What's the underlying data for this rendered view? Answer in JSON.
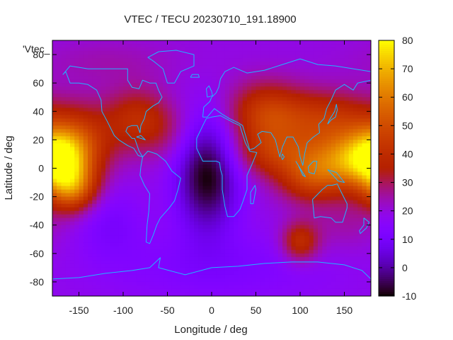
{
  "chart_data": {
    "type": "heatmap",
    "title": "VTEC / TECU 20230710_191.18900",
    "xlabel": "Longitude / deg",
    "ylabel": "Latitude / deg",
    "xlim": [
      -180,
      180
    ],
    "ylim": [
      -90,
      90
    ],
    "x_ticks": [
      -150,
      -100,
      -50,
      0,
      50,
      100,
      150
    ],
    "y_ticks": [
      -80,
      -60,
      -40,
      -20,
      0,
      20,
      40,
      60,
      80
    ],
    "series_label": "'Vtec_",
    "colorbar": {
      "min": -10,
      "max": 80,
      "ticks": [
        -10,
        0,
        10,
        20,
        30,
        40,
        50,
        60,
        70,
        80
      ]
    },
    "base_value": 19,
    "blobs": [
      {
        "lon": -172,
        "lat": 8,
        "dlon": 24,
        "dlat": 15,
        "amp": 45
      },
      {
        "lon": -158,
        "lat": -14,
        "dlon": 20,
        "dlat": 12,
        "amp": 34
      },
      {
        "lon": -145,
        "lat": 20,
        "dlon": 28,
        "dlat": 18,
        "amp": 18
      },
      {
        "lon": -85,
        "lat": 35,
        "dlon": 25,
        "dlat": 15,
        "amp": 18
      },
      {
        "lon": -50,
        "lat": 25,
        "dlon": 25,
        "dlat": 15,
        "amp": 8
      },
      {
        "lon": -5,
        "lat": -5,
        "dlon": 25,
        "dlat": 28,
        "amp": -29
      },
      {
        "lon": -115,
        "lat": -38,
        "dlon": 28,
        "dlat": 18,
        "amp": -8
      },
      {
        "lon": 10,
        "lat": -70,
        "dlon": 100,
        "dlat": 18,
        "amp": -7
      },
      {
        "lon": 60,
        "lat": 38,
        "dlon": 30,
        "dlat": 16,
        "amp": 24
      },
      {
        "lon": 75,
        "lat": 10,
        "dlon": 35,
        "dlat": 12,
        "amp": 20
      },
      {
        "lon": 130,
        "lat": 35,
        "dlon": 40,
        "dlat": 14,
        "amp": 22
      },
      {
        "lon": 150,
        "lat": 5,
        "dlon": 30,
        "dlat": 14,
        "amp": 33
      },
      {
        "lon": 110,
        "lat": -8,
        "dlon": 25,
        "dlat": 12,
        "amp": 20
      },
      {
        "lon": 100,
        "lat": -52,
        "dlon": 15,
        "dlat": 10,
        "amp": 22
      },
      {
        "lon": 150,
        "lat": -40,
        "dlon": 30,
        "dlat": 15,
        "amp": 6
      },
      {
        "lon": -120,
        "lat": 75,
        "dlon": 60,
        "dlat": 12,
        "amp": 5
      }
    ],
    "coastlines": [
      {
        "name": "north-america",
        "points": [
          [
            -165,
            68
          ],
          [
            -160,
            60
          ],
          [
            -150,
            60
          ],
          [
            -140,
            59
          ],
          [
            -130,
            55
          ],
          [
            -125,
            48
          ],
          [
            -124,
            40
          ],
          [
            -118,
            33
          ],
          [
            -110,
            23
          ],
          [
            -105,
            20
          ],
          [
            -95,
            16
          ],
          [
            -88,
            14
          ],
          [
            -83,
            9
          ],
          [
            -78,
            8
          ],
          [
            -82,
            12
          ],
          [
            -87,
            21
          ],
          [
            -90,
            21
          ],
          [
            -97,
            26
          ],
          [
            -95,
            29
          ],
          [
            -90,
            30
          ],
          [
            -84,
            30
          ],
          [
            -81,
            25
          ],
          [
            -80,
            30
          ],
          [
            -76,
            35
          ],
          [
            -74,
            40
          ],
          [
            -70,
            42
          ],
          [
            -66,
            44
          ],
          [
            -60,
            46
          ],
          [
            -56,
            50
          ],
          [
            -60,
            55
          ],
          [
            -63,
            60
          ],
          [
            -70,
            60
          ],
          [
            -78,
            62
          ],
          [
            -82,
            56
          ],
          [
            -90,
            57
          ],
          [
            -95,
            62
          ],
          [
            -95,
            70
          ],
          [
            -110,
            70
          ],
          [
            -130,
            70
          ],
          [
            -140,
            70
          ],
          [
            -160,
            72
          ],
          [
            -168,
            66
          ],
          [
            -165,
            68
          ]
        ]
      },
      {
        "name": "greenland",
        "points": [
          [
            -50,
            60
          ],
          [
            -42,
            60
          ],
          [
            -35,
            68
          ],
          [
            -20,
            72
          ],
          [
            -20,
            80
          ],
          [
            -40,
            83
          ],
          [
            -60,
            82
          ],
          [
            -72,
            78
          ],
          [
            -65,
            75
          ],
          [
            -55,
            70
          ],
          [
            -50,
            60
          ]
        ]
      },
      {
        "name": "south-america",
        "points": [
          [
            -78,
            8
          ],
          [
            -72,
            12
          ],
          [
            -62,
            10
          ],
          [
            -52,
            5
          ],
          [
            -45,
            -2
          ],
          [
            -35,
            -7
          ],
          [
            -38,
            -15
          ],
          [
            -42,
            -23
          ],
          [
            -48,
            -28
          ],
          [
            -58,
            -35
          ],
          [
            -62,
            -40
          ],
          [
            -66,
            -47
          ],
          [
            -70,
            -53
          ],
          [
            -74,
            -52
          ],
          [
            -73,
            -40
          ],
          [
            -71,
            -30
          ],
          [
            -70,
            -18
          ],
          [
            -76,
            -12
          ],
          [
            -81,
            -5
          ],
          [
            -80,
            1
          ],
          [
            -78,
            8
          ]
        ]
      },
      {
        "name": "eurasia",
        "points": [
          [
            -10,
            36
          ],
          [
            -9,
            43
          ],
          [
            -2,
            47
          ],
          [
            0,
            50
          ],
          [
            5,
            53
          ],
          [
            8,
            57
          ],
          [
            10,
            63
          ],
          [
            15,
            68
          ],
          [
            25,
            71
          ],
          [
            40,
            67
          ],
          [
            60,
            69
          ],
          [
            80,
            73
          ],
          [
            100,
            77
          ],
          [
            120,
            73
          ],
          [
            140,
            72
          ],
          [
            160,
            70
          ],
          [
            180,
            68
          ],
          [
            180,
            62
          ],
          [
            165,
            60
          ],
          [
            160,
            55
          ],
          [
            150,
            59
          ],
          [
            140,
            55
          ],
          [
            135,
            48
          ],
          [
            130,
            42
          ],
          [
            127,
            35
          ],
          [
            121,
            31
          ],
          [
            122,
            25
          ],
          [
            115,
            22
          ],
          [
            108,
            18
          ],
          [
            105,
            10
          ],
          [
            103,
            2
          ],
          [
            100,
            8
          ],
          [
            98,
            15
          ],
          [
            92,
            22
          ],
          [
            85,
            22
          ],
          [
            80,
            15
          ],
          [
            77,
            8
          ],
          [
            72,
            20
          ],
          [
            67,
            25
          ],
          [
            57,
            26
          ],
          [
            52,
            24
          ],
          [
            56,
            18
          ],
          [
            48,
            14
          ],
          [
            43,
            13
          ],
          [
            35,
            30
          ],
          [
            30,
            32
          ],
          [
            20,
            35
          ],
          [
            12,
            38
          ],
          [
            3,
            42
          ],
          [
            -5,
            36
          ],
          [
            -10,
            36
          ]
        ]
      },
      {
        "name": "africa",
        "points": [
          [
            -17,
            21
          ],
          [
            -17,
            14
          ],
          [
            -10,
            5
          ],
          [
            -5,
            5
          ],
          [
            5,
            5
          ],
          [
            9,
            4
          ],
          [
            10,
            -1
          ],
          [
            12,
            -5
          ],
          [
            12,
            -15
          ],
          [
            15,
            -27
          ],
          [
            18,
            -34
          ],
          [
            25,
            -34
          ],
          [
            32,
            -29
          ],
          [
            35,
            -24
          ],
          [
            40,
            -15
          ],
          [
            40,
            -5
          ],
          [
            45,
            2
          ],
          [
            51,
            11
          ],
          [
            43,
            12
          ],
          [
            38,
            18
          ],
          [
            32,
            30
          ],
          [
            25,
            32
          ],
          [
            10,
            37
          ],
          [
            0,
            36
          ],
          [
            -6,
            35
          ],
          [
            -10,
            30
          ],
          [
            -17,
            21
          ]
        ]
      },
      {
        "name": "australia",
        "points": [
          [
            114,
            -22
          ],
          [
            116,
            -35
          ],
          [
            123,
            -34
          ],
          [
            135,
            -35
          ],
          [
            140,
            -38
          ],
          [
            148,
            -38
          ],
          [
            153,
            -28
          ],
          [
            153,
            -25
          ],
          [
            145,
            -15
          ],
          [
            142,
            -11
          ],
          [
            136,
            -12
          ],
          [
            131,
            -12
          ],
          [
            125,
            -15
          ],
          [
            114,
            -22
          ]
        ]
      },
      {
        "name": "antarctica",
        "points": [
          [
            -180,
            -78
          ],
          [
            -150,
            -77
          ],
          [
            -120,
            -74
          ],
          [
            -90,
            -72
          ],
          [
            -70,
            -70
          ],
          [
            -58,
            -63
          ],
          [
            -60,
            -70
          ],
          [
            -30,
            -75
          ],
          [
            0,
            -70
          ],
          [
            30,
            -69
          ],
          [
            60,
            -67
          ],
          [
            90,
            -66
          ],
          [
            120,
            -66
          ],
          [
            150,
            -68
          ],
          [
            170,
            -72
          ],
          [
            180,
            -78
          ]
        ]
      },
      {
        "name": "uk",
        "points": [
          [
            -5,
            50
          ],
          [
            1,
            51
          ],
          [
            0,
            54
          ],
          [
            -3,
            58
          ],
          [
            -6,
            56
          ],
          [
            -5,
            50
          ]
        ]
      },
      {
        "name": "japan",
        "points": [
          [
            131,
            31
          ],
          [
            135,
            34
          ],
          [
            140,
            36
          ],
          [
            142,
            41
          ],
          [
            141,
            45
          ],
          [
            139,
            40
          ],
          [
            133,
            34
          ],
          [
            131,
            31
          ]
        ]
      },
      {
        "name": "madagascar",
        "points": [
          [
            44,
            -25
          ],
          [
            47,
            -25
          ],
          [
            50,
            -15
          ],
          [
            49,
            -12
          ],
          [
            44,
            -17
          ],
          [
            44,
            -25
          ]
        ]
      },
      {
        "name": "new-guinea",
        "points": [
          [
            131,
            -1
          ],
          [
            141,
            -3
          ],
          [
            150,
            -10
          ],
          [
            143,
            -9
          ],
          [
            137,
            -5
          ],
          [
            131,
            -1
          ]
        ]
      },
      {
        "name": "borneo",
        "points": [
          [
            109,
            1
          ],
          [
            115,
            5
          ],
          [
            119,
            5
          ],
          [
            118,
            0
          ],
          [
            116,
            -4
          ],
          [
            110,
            -3
          ],
          [
            109,
            1
          ]
        ]
      },
      {
        "name": "sumatra",
        "points": [
          [
            95,
            5
          ],
          [
            100,
            0
          ],
          [
            106,
            -6
          ],
          [
            103,
            -5
          ],
          [
            98,
            2
          ],
          [
            95,
            5
          ]
        ]
      },
      {
        "name": "new-zealand",
        "points": [
          [
            172,
            -35
          ],
          [
            178,
            -38
          ],
          [
            175,
            -42
          ],
          [
            168,
            -46
          ],
          [
            167,
            -44
          ],
          [
            172,
            -40
          ],
          [
            172,
            -35
          ]
        ]
      },
      {
        "name": "iceland",
        "points": [
          [
            -24,
            64
          ],
          [
            -14,
            64
          ],
          [
            -15,
            66
          ],
          [
            -22,
            66
          ],
          [
            -24,
            64
          ]
        ]
      },
      {
        "name": "cuba",
        "points": [
          [
            -85,
            22
          ],
          [
            -80,
            23
          ],
          [
            -75,
            20
          ],
          [
            -80,
            21
          ],
          [
            -85,
            22
          ]
        ]
      },
      {
        "name": "sri-lanka",
        "points": [
          [
            80,
            6
          ],
          [
            82,
            8
          ],
          [
            80,
            10
          ],
          [
            79,
            8
          ],
          [
            80,
            6
          ]
        ]
      }
    ]
  }
}
